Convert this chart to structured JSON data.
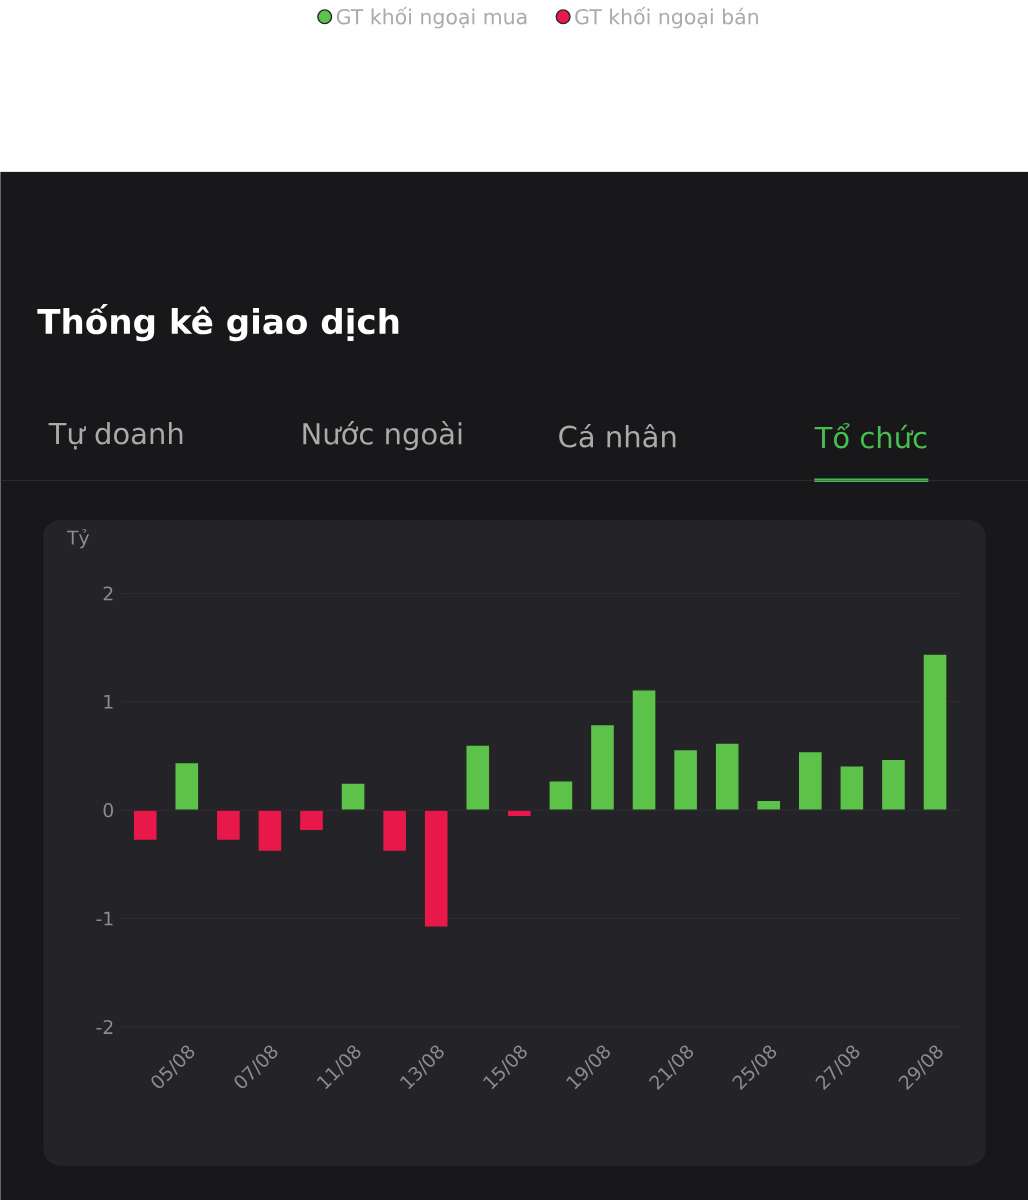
{
  "chart_data": {
    "type": "bar",
    "title": "Thống kê giao dịch",
    "ylabel": "Tỷ",
    "annotations": [
      "Tự doanh",
      "Nước ngoài",
      "Cá nhân",
      "Tổ chức"
    ],
    "categories": [
      null,
      "05/08",
      null,
      "07/08",
      null,
      "11/08",
      null,
      "13/08",
      null,
      "15/08",
      null,
      "19/08",
      null,
      "21/08",
      null,
      "25/08",
      null,
      "27/08",
      null,
      "29/08"
    ],
    "series": [
      {
        "name": "GT khối ngoại mua",
        "color": "#5cc24a",
        "values": [
          null,
          0.44,
          null,
          null,
          null,
          0.25,
          null,
          null,
          0.6,
          null,
          0.27,
          0.79,
          1.11,
          0.56,
          0.62,
          0.09,
          0.54,
          0.41,
          0.47,
          1.44
        ]
      },
      {
        "name": "GT khối ngoại bán",
        "color": "#e8194a",
        "values": [
          -0.28,
          null,
          -0.28,
          -0.38,
          -0.19,
          null,
          -0.38,
          -1.08,
          null,
          -0.06,
          null,
          null,
          null,
          null,
          null,
          null,
          null,
          null,
          null,
          null
        ]
      }
    ],
    "ylim": [
      -2,
      2
    ],
    "yticks": [
      -2,
      -1,
      0,
      1,
      2
    ],
    "grid": "y",
    "legend": "top"
  }
}
